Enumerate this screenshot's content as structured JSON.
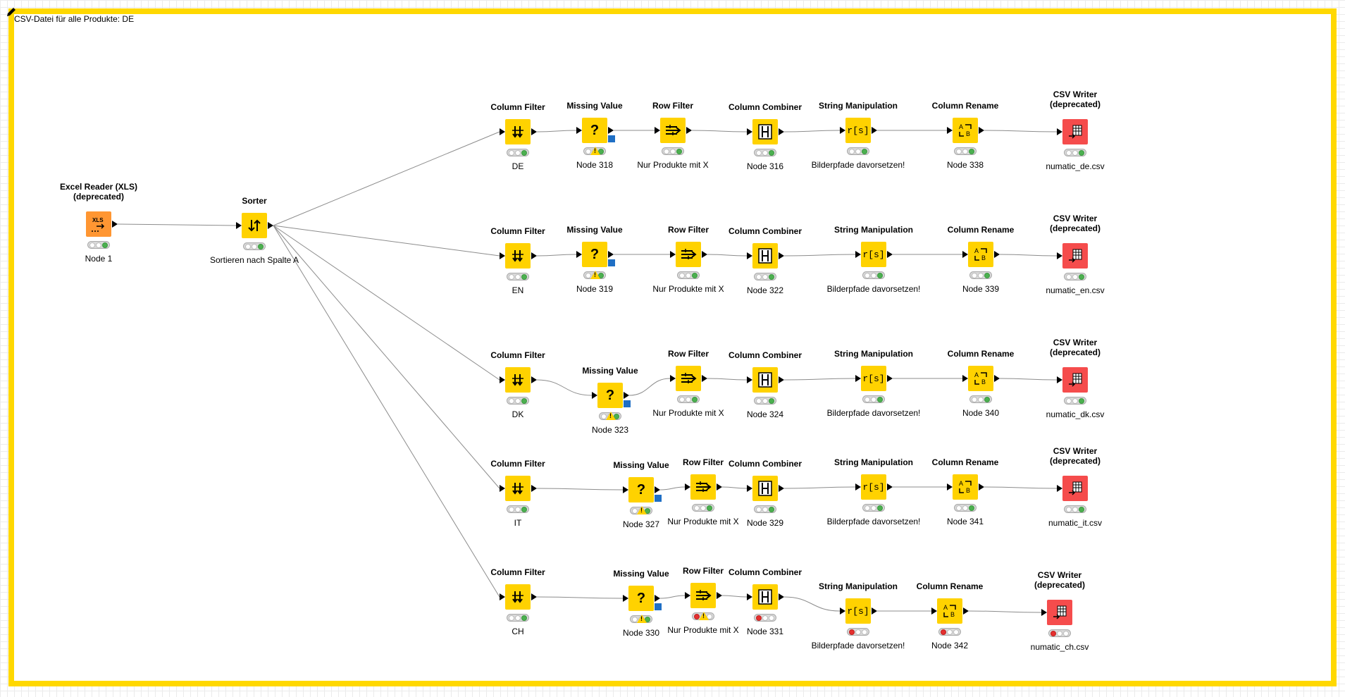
{
  "annotation": {
    "text": "CSV-Datei für alle Produkte: DE",
    "border_color": "#ffd800"
  },
  "colors": {
    "manipulator": "#ffd200",
    "source": "#ff9632",
    "sink": "#f54c4c",
    "port_table": "#000000",
    "port_flow_variable": "#1f6fc5"
  },
  "nodes": {
    "excel": {
      "title": "Excel Reader (XLS) (deprecated)",
      "title1": "Excel Reader (XLS)",
      "title2": "(deprecated)",
      "label": "Node 1",
      "icon": "xls-reader-icon",
      "status": [
        "off",
        "off",
        "green"
      ]
    },
    "sorter": {
      "title": "Sorter",
      "label": "Sortieren nach Spalte A",
      "icon": "sort-arrows-icon",
      "status": [
        "off",
        "off",
        "green"
      ]
    },
    "r1": {
      "cf": {
        "title": "Column Filter",
        "label": "DE",
        "status": [
          "off",
          "off",
          "green"
        ]
      },
      "mv": {
        "title": "Missing Value",
        "label": "Node 318",
        "status": [
          "off",
          "warn",
          "green"
        ]
      },
      "rf": {
        "title": "Row Filter",
        "label": "Nur Produkte mit X",
        "status": [
          "off",
          "off",
          "green"
        ]
      },
      "cc": {
        "title": "Column Combiner",
        "label": "Node 316",
        "status": [
          "off",
          "off",
          "green"
        ]
      },
      "sm": {
        "title": "String Manipulation",
        "label": "Bilderpfade davorsetzen!",
        "status": [
          "off",
          "off",
          "green"
        ]
      },
      "cr": {
        "title": "Column Rename",
        "label": "Node 338",
        "status": [
          "off",
          "off",
          "green"
        ]
      },
      "cw": {
        "title1": "CSV Writer",
        "title2": "(deprecated)",
        "label": "numatic_de.csv",
        "status": [
          "off",
          "off",
          "green"
        ]
      }
    },
    "r2": {
      "cf": {
        "title": "Column Filter",
        "label": "EN",
        "status": [
          "off",
          "off",
          "green"
        ]
      },
      "mv": {
        "title": "Missing Value",
        "label": "Node 319",
        "status": [
          "off",
          "warn",
          "green"
        ]
      },
      "rf": {
        "title": "Row Filter",
        "label": "Nur Produkte mit X",
        "status": [
          "off",
          "off",
          "green"
        ]
      },
      "cc": {
        "title": "Column Combiner",
        "label": "Node 322",
        "status": [
          "off",
          "off",
          "green"
        ]
      },
      "sm": {
        "title": "String Manipulation",
        "label": "Bilderpfade davorsetzen!",
        "status": [
          "off",
          "off",
          "green"
        ]
      },
      "cr": {
        "title": "Column Rename",
        "label": "Node 339",
        "status": [
          "off",
          "off",
          "green"
        ]
      },
      "cw": {
        "title1": "CSV Writer",
        "title2": "(deprecated)",
        "label": "numatic_en.csv",
        "status": [
          "off",
          "off",
          "green"
        ]
      }
    },
    "r3": {
      "cf": {
        "title": "Column Filter",
        "label": "DK",
        "status": [
          "off",
          "off",
          "green"
        ]
      },
      "mv": {
        "title": "Missing Value",
        "label": "Node 323",
        "status": [
          "off",
          "warn",
          "green"
        ]
      },
      "rf": {
        "title": "Row Filter",
        "label": "Nur Produkte mit X",
        "status": [
          "off",
          "off",
          "green"
        ]
      },
      "cc": {
        "title": "Column Combiner",
        "label": "Node 324",
        "status": [
          "off",
          "off",
          "green"
        ]
      },
      "sm": {
        "title": "String Manipulation",
        "label": "Bilderpfade davorsetzen!",
        "status": [
          "off",
          "off",
          "green"
        ]
      },
      "cr": {
        "title": "Column Rename",
        "label": "Node 340",
        "status": [
          "off",
          "off",
          "green"
        ]
      },
      "cw": {
        "title1": "CSV Writer",
        "title2": "(deprecated)",
        "label": "numatic_dk.csv",
        "status": [
          "off",
          "off",
          "green"
        ]
      }
    },
    "r4": {
      "cf": {
        "title": "Column Filter",
        "label": "IT",
        "status": [
          "off",
          "off",
          "green"
        ]
      },
      "mv": {
        "title": "Missing Value",
        "label": "Node 327",
        "status": [
          "off",
          "warn",
          "green"
        ]
      },
      "rf": {
        "title": "Row Filter",
        "label": "Nur Produkte mit X",
        "status": [
          "off",
          "off",
          "green"
        ]
      },
      "cc": {
        "title": "Column Combiner",
        "label": "Node 329",
        "status": [
          "off",
          "off",
          "green"
        ]
      },
      "sm": {
        "title": "String Manipulation",
        "label": "Bilderpfade davorsetzen!",
        "status": [
          "off",
          "off",
          "green"
        ]
      },
      "cr": {
        "title": "Column Rename",
        "label": "Node 341",
        "status": [
          "off",
          "off",
          "green"
        ]
      },
      "cw": {
        "title1": "CSV Writer",
        "title2": "(deprecated)",
        "label": "numatic_it.csv",
        "status": [
          "off",
          "off",
          "green"
        ]
      }
    },
    "r5": {
      "cf": {
        "title": "Column Filter",
        "label": "CH",
        "status": [
          "off",
          "off",
          "green"
        ]
      },
      "mv": {
        "title": "Missing Value",
        "label": "Node 330",
        "status": [
          "off",
          "warn",
          "green"
        ]
      },
      "rf": {
        "title": "Row Filter",
        "label": "Nur Produkte mit X",
        "status": [
          "red",
          "warn",
          "off"
        ]
      },
      "cc": {
        "title": "Column Combiner",
        "label": "Node 331",
        "status": [
          "red",
          "off",
          "off"
        ]
      },
      "sm": {
        "title": "String Manipulation",
        "label": "Bilderpfade davorsetzen!",
        "status": [
          "red",
          "off",
          "off"
        ]
      },
      "cr": {
        "title": "Column Rename",
        "label": "Node 342",
        "status": [
          "red",
          "off",
          "off"
        ]
      },
      "cw": {
        "title1": "CSV Writer",
        "title2": "(deprecated)",
        "label": "numatic_ch.csv",
        "status": [
          "red",
          "off",
          "off"
        ]
      }
    }
  }
}
